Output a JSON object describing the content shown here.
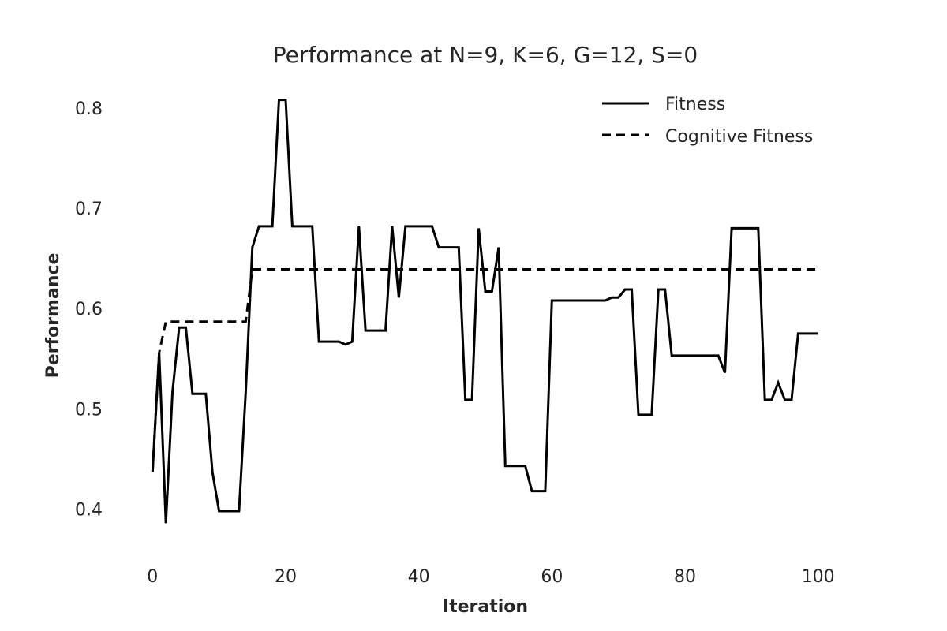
{
  "chart_data": {
    "type": "line",
    "title": "Performance at N=9, K=6, G=12, S=0",
    "xlabel": "Iteration",
    "ylabel": "Performance",
    "xlim": [
      -3,
      103
    ],
    "ylim": [
      0.365,
      0.825
    ],
    "xticks": [
      "0",
      "20",
      "40",
      "60",
      "80",
      "100"
    ],
    "xtick_values": [
      0,
      20,
      40,
      60,
      80,
      100
    ],
    "yticks": [
      "0.4",
      "0.5",
      "0.6",
      "0.7",
      "0.8"
    ],
    "ytick_values": [
      0.4,
      0.5,
      0.6,
      0.7,
      0.8
    ],
    "grid": false,
    "legend_position": "top-right",
    "colors": {
      "line": "#000000",
      "text": "#262626",
      "background": "#ffffff"
    },
    "series": [
      {
        "name": "Fitness",
        "style": "solid",
        "x": [
          0,
          1,
          2,
          3,
          4,
          5,
          6,
          7,
          8,
          9,
          10,
          11,
          12,
          13,
          14,
          15,
          16,
          17,
          18,
          19,
          20,
          21,
          22,
          23,
          24,
          25,
          26,
          27,
          28,
          29,
          30,
          31,
          32,
          33,
          34,
          35,
          36,
          37,
          38,
          39,
          40,
          41,
          42,
          43,
          44,
          45,
          46,
          47,
          48,
          49,
          50,
          51,
          52,
          53,
          54,
          55,
          56,
          57,
          58,
          59,
          60,
          61,
          62,
          63,
          64,
          65,
          66,
          67,
          68,
          69,
          70,
          71,
          72,
          73,
          74,
          75,
          76,
          77,
          78,
          79,
          80,
          81,
          82,
          83,
          84,
          85,
          86,
          87,
          88,
          89,
          90,
          91,
          92,
          93,
          94,
          95,
          96,
          97,
          98,
          99,
          100
        ],
        "y": [
          0.437,
          0.556,
          0.386,
          0.517,
          0.581,
          0.581,
          0.515,
          0.515,
          0.515,
          0.437,
          0.398,
          0.398,
          0.398,
          0.398,
          0.517,
          0.661,
          0.682,
          0.682,
          0.682,
          0.808,
          0.808,
          0.682,
          0.682,
          0.682,
          0.682,
          0.567,
          0.567,
          0.567,
          0.567,
          0.564,
          0.567,
          0.682,
          0.578,
          0.578,
          0.578,
          0.578,
          0.682,
          0.611,
          0.682,
          0.682,
          0.682,
          0.682,
          0.682,
          0.661,
          0.661,
          0.661,
          0.661,
          0.509,
          0.509,
          0.68,
          0.617,
          0.617,
          0.661,
          0.443,
          0.443,
          0.443,
          0.443,
          0.418,
          0.418,
          0.418,
          0.608,
          0.608,
          0.608,
          0.608,
          0.608,
          0.608,
          0.608,
          0.608,
          0.608,
          0.611,
          0.611,
          0.619,
          0.619,
          0.494,
          0.494,
          0.494,
          0.619,
          0.619,
          0.553,
          0.553,
          0.553,
          0.553,
          0.553,
          0.553,
          0.553,
          0.553,
          0.536,
          0.68,
          0.68,
          0.68,
          0.68,
          0.68,
          0.509,
          0.509,
          0.526,
          0.509,
          0.509,
          0.575,
          0.575,
          0.575,
          0.575
        ]
      },
      {
        "name": "Cognitive Fitness",
        "style": "dashed",
        "x": [
          0,
          1,
          2,
          3,
          4,
          5,
          6,
          7,
          8,
          9,
          10,
          11,
          12,
          13,
          14,
          15,
          16,
          17,
          18,
          19,
          20,
          21,
          22,
          23,
          24,
          25,
          26,
          27,
          28,
          29,
          30,
          31,
          32,
          33,
          34,
          35,
          36,
          37,
          38,
          39,
          40,
          41,
          42,
          43,
          44,
          45,
          46,
          47,
          48,
          49,
          50,
          51,
          52,
          53,
          54,
          55,
          56,
          57,
          58,
          59,
          60,
          61,
          62,
          63,
          64,
          65,
          66,
          67,
          68,
          69,
          70,
          71,
          72,
          73,
          74,
          75,
          76,
          77,
          78,
          79,
          80,
          81,
          82,
          83,
          84,
          85,
          86,
          87,
          88,
          89,
          90,
          91,
          92,
          93,
          94,
          95,
          96,
          97,
          98,
          99,
          100
        ],
        "y": [
          0.437,
          0.556,
          0.587,
          0.587,
          0.587,
          0.587,
          0.587,
          0.587,
          0.587,
          0.587,
          0.587,
          0.587,
          0.587,
          0.587,
          0.587,
          0.639,
          0.639,
          0.639,
          0.639,
          0.639,
          0.639,
          0.639,
          0.639,
          0.639,
          0.639,
          0.639,
          0.639,
          0.639,
          0.639,
          0.639,
          0.639,
          0.639,
          0.639,
          0.639,
          0.639,
          0.639,
          0.639,
          0.639,
          0.639,
          0.639,
          0.639,
          0.639,
          0.639,
          0.639,
          0.639,
          0.639,
          0.639,
          0.639,
          0.639,
          0.639,
          0.639,
          0.639,
          0.639,
          0.639,
          0.639,
          0.639,
          0.639,
          0.639,
          0.639,
          0.639,
          0.639,
          0.639,
          0.639,
          0.639,
          0.639,
          0.639,
          0.639,
          0.639,
          0.639,
          0.639,
          0.639,
          0.639,
          0.639,
          0.639,
          0.639,
          0.639,
          0.639,
          0.639,
          0.639,
          0.639,
          0.639,
          0.639,
          0.639,
          0.639,
          0.639,
          0.639,
          0.639,
          0.639,
          0.639,
          0.639,
          0.639,
          0.639,
          0.639,
          0.639,
          0.639,
          0.639,
          0.639,
          0.639,
          0.639,
          0.639,
          0.639
        ]
      }
    ]
  }
}
